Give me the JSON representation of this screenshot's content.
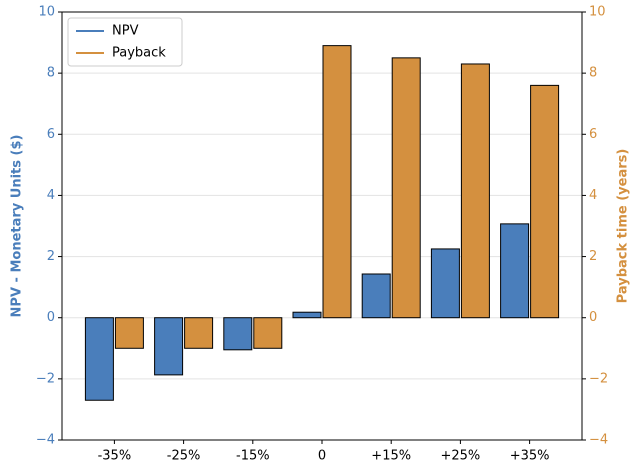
{
  "chart_data": {
    "type": "bar",
    "categories": [
      "-35%",
      "-25%",
      "-15%",
      "0",
      "+15%",
      "+25%",
      "+35%"
    ],
    "series": [
      {
        "name": "NPV",
        "color": "#4a7ebb",
        "values": [
          -2.7,
          -1.87,
          -1.05,
          0.18,
          1.43,
          2.25,
          3.07
        ]
      },
      {
        "name": "Payback",
        "color": "#d4903f",
        "axis": "y2",
        "values": [
          -1,
          -1,
          -1,
          8.9,
          8.5,
          8.3,
          7.6
        ]
      }
    ],
    "ylabel": "NPV - Monetary Units ($)",
    "y2label": "Payback time (years)",
    "ylim": [
      -4,
      10
    ],
    "yticks": [
      {
        "value": -4,
        "label": "−4"
      },
      {
        "value": -2,
        "label": "−2"
      },
      0,
      2,
      4,
      6,
      8,
      10
    ],
    "y2lim": [
      -4,
      10
    ],
    "y2ticks": [
      {
        "value": -4,
        "label": "−4"
      },
      {
        "value": -2,
        "label": "−2"
      },
      0,
      2,
      4,
      6,
      8,
      10
    ],
    "grid": true,
    "legend": "upper left"
  }
}
